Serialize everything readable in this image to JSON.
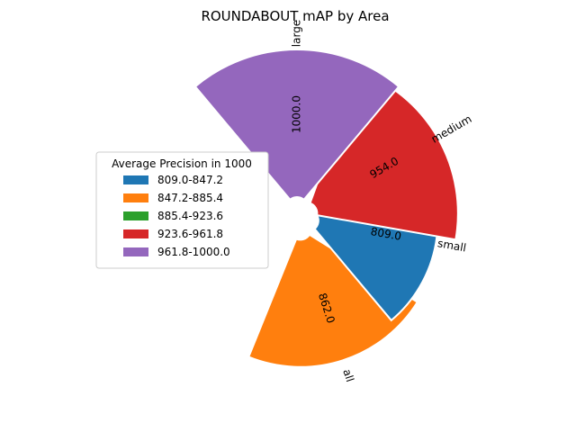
{
  "chart_data": {
    "type": "polar-bar",
    "title": "ROUNDABOUT mAP by Area",
    "categories": [
      "all",
      "small",
      "medium",
      "large"
    ],
    "values": [
      862.0,
      809.0,
      954.0,
      1000.0
    ],
    "value_labels": [
      "862.0",
      "809.0",
      "954.0",
      "1000.0"
    ],
    "legend": {
      "title": "Average Precision in 1000",
      "placement": "center-left",
      "entries": [
        {
          "label": "809.0-847.2",
          "color": "#1f77b4"
        },
        {
          "label": "847.2-885.4",
          "color": "#ff7f0e"
        },
        {
          "label": "885.4-923.6",
          "color": "#2ca02c"
        },
        {
          "label": "923.6-961.8",
          "color": "#d62728"
        },
        {
          "label": "961.8-1000.0",
          "color": "#9467bd"
        }
      ]
    },
    "bar_colors": [
      "#ff7f0e",
      "#1f77b4",
      "#d62728",
      "#9467bd"
    ]
  }
}
